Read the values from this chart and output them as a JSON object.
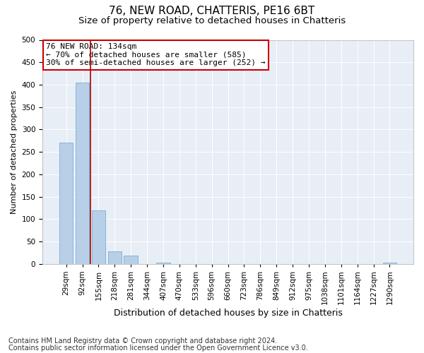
{
  "title1": "76, NEW ROAD, CHATTERIS, PE16 6BT",
  "title2": "Size of property relative to detached houses in Chatteris",
  "xlabel": "Distribution of detached houses by size in Chatteris",
  "ylabel": "Number of detached properties",
  "footer1": "Contains HM Land Registry data © Crown copyright and database right 2024.",
  "footer2": "Contains public sector information licensed under the Open Government Licence v3.0.",
  "categories": [
    "29sqm",
    "92sqm",
    "155sqm",
    "218sqm",
    "281sqm",
    "344sqm",
    "407sqm",
    "470sqm",
    "533sqm",
    "596sqm",
    "660sqm",
    "723sqm",
    "786sqm",
    "849sqm",
    "912sqm",
    "975sqm",
    "1038sqm",
    "1101sqm",
    "1164sqm",
    "1227sqm",
    "1290sqm"
  ],
  "values": [
    270,
    405,
    120,
    28,
    18,
    0,
    2,
    0,
    0,
    0,
    0,
    0,
    0,
    0,
    0,
    0,
    0,
    0,
    0,
    0,
    2
  ],
  "bar_color": "#b8cfe8",
  "bar_edge_color": "#7aadd4",
  "vline_x_index": 1.5,
  "vline_color": "#aa0000",
  "annotation_line1": "76 NEW ROAD: 134sqm",
  "annotation_line2": "← 70% of detached houses are smaller (585)",
  "annotation_line3": "30% of semi-detached houses are larger (252) →",
  "box_edge_color": "#cc0000",
  "bg_color": "#e8eef6",
  "ylim_max": 500,
  "title1_fontsize": 11,
  "title2_fontsize": 9.5,
  "ylabel_fontsize": 8,
  "xlabel_fontsize": 9,
  "footer_fontsize": 7,
  "tick_fontsize": 7.5,
  "annot_fontsize": 8
}
